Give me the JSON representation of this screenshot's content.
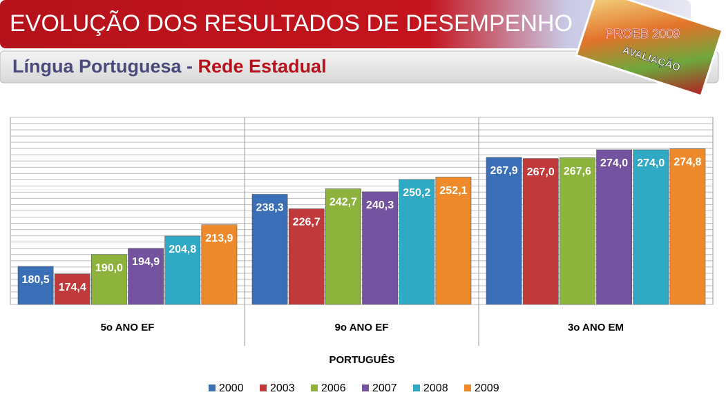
{
  "header": {
    "title": "EVOLUÇÃO DOS RESULTADOS DE DESEMPENHO",
    "subtitle_prefix": "Língua Portuguesa - ",
    "subtitle_highlight": "Rede Estadual"
  },
  "logo": {
    "title": "PROEB 2009",
    "tag": "AVALIAÇÃO"
  },
  "chart_data": {
    "type": "bar",
    "x_label": "PORTUGUÊS",
    "categories": [
      "5o ANO EF",
      "9o ANO EF",
      "3o ANO EM"
    ],
    "series": [
      {
        "name": "2000",
        "color": "#3a6fb8",
        "values": [
          180.5,
          238.3,
          267.9
        ],
        "value_labels": [
          "180,5",
          "238,3",
          "267,9"
        ]
      },
      {
        "name": "2003",
        "color": "#c0393b",
        "values": [
          174.4,
          226.7,
          267.0
        ],
        "value_labels": [
          "174,4",
          "226,7",
          "267,0"
        ]
      },
      {
        "name": "2006",
        "color": "#8db33c",
        "values": [
          190.0,
          242.7,
          267.6
        ],
        "value_labels": [
          "190,0",
          "242,7",
          "267,6"
        ]
      },
      {
        "name": "2007",
        "color": "#7353a0",
        "values": [
          194.9,
          240.3,
          274.0
        ],
        "value_labels": [
          "194,9",
          "240,3",
          "274,0"
        ]
      },
      {
        "name": "2008",
        "color": "#2fa9c4",
        "values": [
          204.8,
          250.2,
          274.0
        ],
        "value_labels": [
          "204,8",
          "250,2",
          "274,0"
        ]
      },
      {
        "name": "2009",
        "color": "#ef8a2c",
        "values": [
          213.9,
          252.1,
          274.8
        ],
        "value_labels": [
          "213,9",
          "252,1",
          "274,8"
        ]
      }
    ],
    "ylim": [
      150,
      300
    ],
    "yticks": [
      150,
      155,
      160,
      165,
      170,
      175,
      180,
      185,
      190,
      195,
      200,
      205,
      210,
      215,
      220,
      225,
      230,
      235,
      240,
      245,
      250,
      255,
      260,
      265,
      270,
      275,
      280,
      285,
      290,
      295,
      300
    ],
    "show_tick_labels": false,
    "grid": true,
    "legend": "bottom"
  }
}
